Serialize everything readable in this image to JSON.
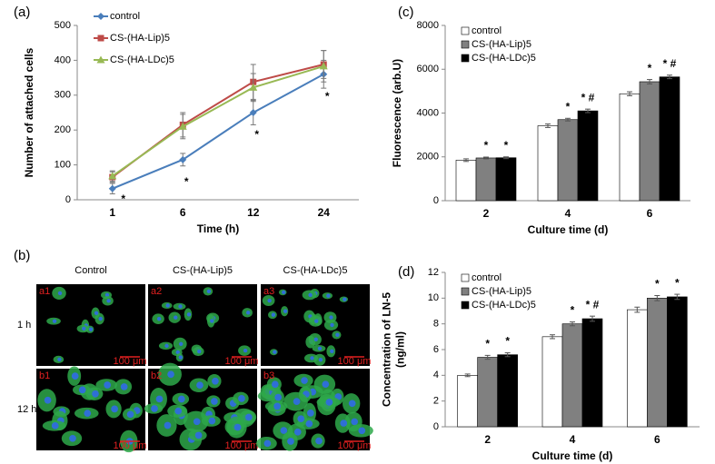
{
  "chart_data": [
    {
      "type": "line",
      "panel": "(a)",
      "xlabel": "Time (h)",
      "ylabel": [
        "Number of attached cells"
      ],
      "categories": [
        "1",
        "6",
        "12",
        "24"
      ],
      "ylim": [
        0,
        500
      ],
      "yticks": [
        0,
        100,
        200,
        300,
        400,
        500
      ],
      "series": [
        {
          "name": "control",
          "color": "#4a7ebb",
          "values": [
            32,
            115,
            250,
            360
          ],
          "errors": [
            15,
            18,
            35,
            40
          ],
          "annotations": [
            "*",
            "*",
            "*",
            "*"
          ]
        },
        {
          "name": "CS-(HA-Lip)5",
          "color": "#be4b48",
          "values": [
            65,
            215,
            338,
            388
          ],
          "errors": [
            15,
            35,
            50,
            40
          ]
        },
        {
          "name": "CS-(HA-LDc)5",
          "color": "#98b954",
          "values": [
            68,
            210,
            322,
            383
          ],
          "errors": [
            15,
            35,
            40,
            45
          ]
        }
      ]
    },
    {
      "type": "bar",
      "panel": "(c)",
      "xlabel": "Culture time (d)",
      "ylabel": [
        "Fluorescence (arb.U)"
      ],
      "categories": [
        "2",
        "4",
        "6"
      ],
      "ylim": [
        0,
        8000
      ],
      "yticks": [
        0,
        2000,
        4000,
        6000,
        8000
      ],
      "series": [
        {
          "name": "control",
          "color": "#ffffff",
          "values": [
            1850,
            3420,
            4880
          ],
          "errors": [
            60,
            80,
            90
          ]
        },
        {
          "name": "CS-(HA-Lip)5",
          "color": "#808080",
          "values": [
            1950,
            3700,
            5430
          ],
          "errors": [
            40,
            60,
            100
          ],
          "annotations": [
            "*",
            "*",
            "*"
          ]
        },
        {
          "name": "CS-(HA-LDc)5",
          "color": "#000000",
          "values": [
            1960,
            4100,
            5650
          ],
          "errors": [
            40,
            80,
            80
          ],
          "annotations": [
            "*",
            "* #",
            "* #"
          ]
        }
      ]
    },
    {
      "type": "bar",
      "panel": "(d)",
      "xlabel": "Culture time (d)",
      "ylabel": [
        "Concentration of LN-5",
        "(ng/ml)"
      ],
      "categories": [
        "2",
        "4",
        "6"
      ],
      "ylim": [
        0,
        12
      ],
      "yticks": [
        0,
        2,
        4,
        6,
        8,
        10,
        12
      ],
      "series": [
        {
          "name": "control",
          "color": "#ffffff",
          "values": [
            4.0,
            7.0,
            9.1
          ],
          "errors": [
            0.1,
            0.15,
            0.2
          ]
        },
        {
          "name": "CS-(HA-Lip)5",
          "color": "#808080",
          "values": [
            5.4,
            8.0,
            10.0
          ],
          "errors": [
            0.15,
            0.15,
            0.2
          ],
          "annotations": [
            "*",
            "*",
            "*"
          ]
        },
        {
          "name": "CS-(HA-LDc)5",
          "color": "#000000",
          "values": [
            5.6,
            8.4,
            10.1
          ],
          "errors": [
            0.15,
            0.2,
            0.2
          ],
          "annotations": [
            "*",
            "* #",
            "*"
          ]
        }
      ]
    }
  ],
  "panel_b": {
    "panel": "(b)",
    "columns": [
      "Control",
      "CS-(HA-Lip)5",
      "CS-(HA-LDc)5"
    ],
    "rows": [
      "1 h",
      "12 h"
    ],
    "cells": [
      [
        "a1",
        "a2",
        "a3"
      ],
      [
        "b1",
        "b2",
        "b3"
      ]
    ],
    "scale_bar": "100 μm"
  }
}
